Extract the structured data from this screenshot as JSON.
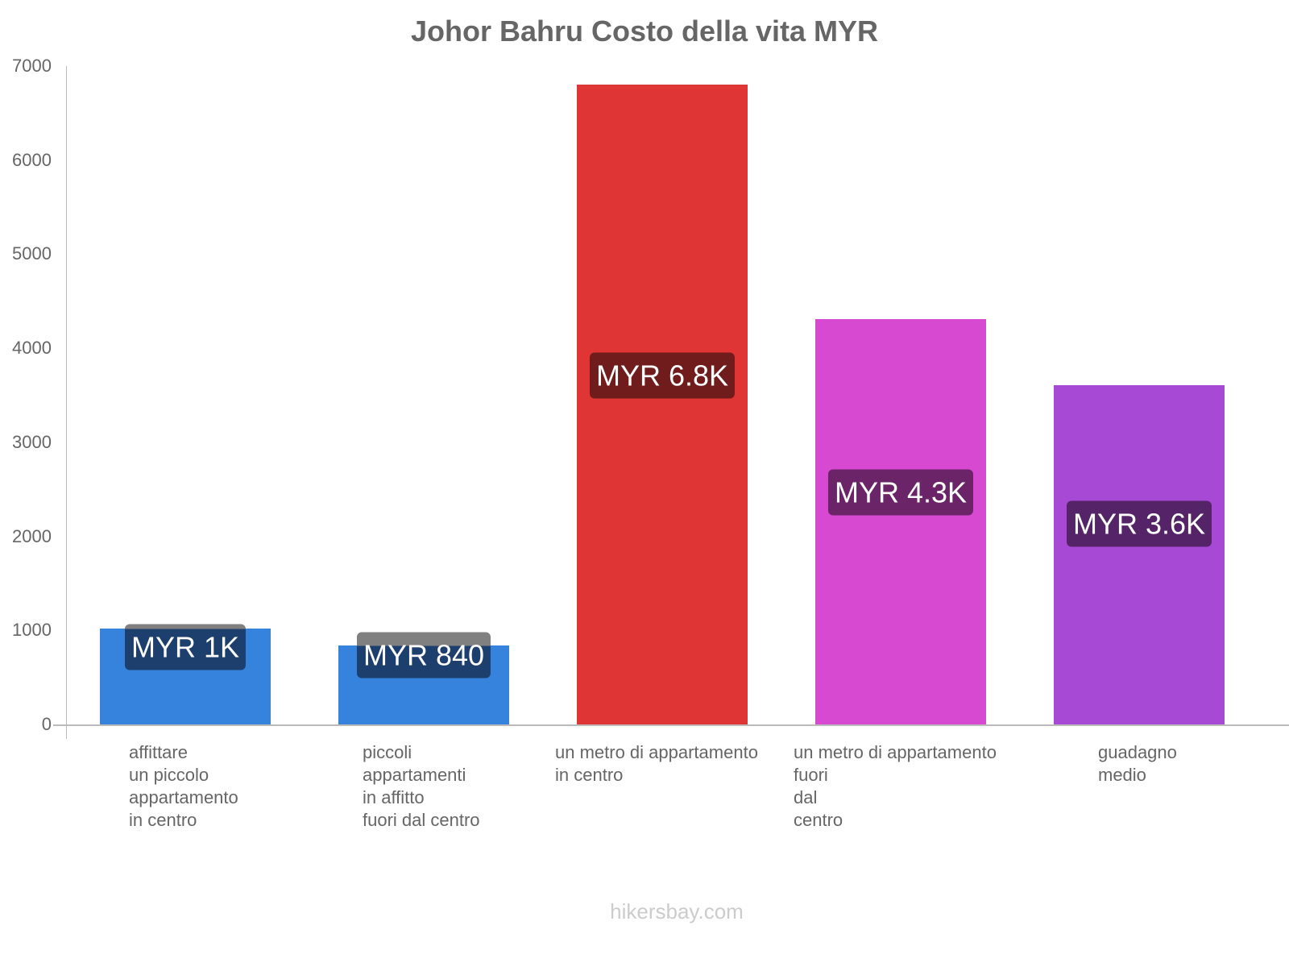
{
  "chart_data": {
    "type": "bar",
    "title": "Johor Bahru Costo della vita MYR",
    "xlabel": "",
    "ylabel": "",
    "ylim": [
      0,
      7000
    ],
    "grid": false,
    "legend": null,
    "yticks": [
      "7000",
      "6000",
      "5000",
      "4000",
      "3000",
      "2000",
      "1000",
      "0"
    ],
    "categories": [
      "affittare\nun piccolo\nappartamento\nin centro",
      "piccoli\nappartamenti\nin affitto\nfuori dal centro",
      "un metro di appartamento\nin centro",
      "un metro di appartamento\nfuori\ndal\ncentro",
      "guadagno\nmedio"
    ],
    "values": [
      1020,
      840,
      6800,
      4310,
      3610
    ],
    "data_labels": [
      "MYR 1K",
      "MYR 840",
      "MYR 6.8K",
      "MYR 4.3K",
      "MYR 3.6K"
    ],
    "colors": [
      "#3583dd",
      "#3583dd",
      "#e03535",
      "#d649d0",
      "#a849d6"
    ],
    "label_bg_colors": [
      "#1c3f6e",
      "#1c3f6e",
      "#711c1c",
      "#6b2468",
      "#552468"
    ]
  },
  "footer": {
    "watermark": "hikersbay.com"
  }
}
